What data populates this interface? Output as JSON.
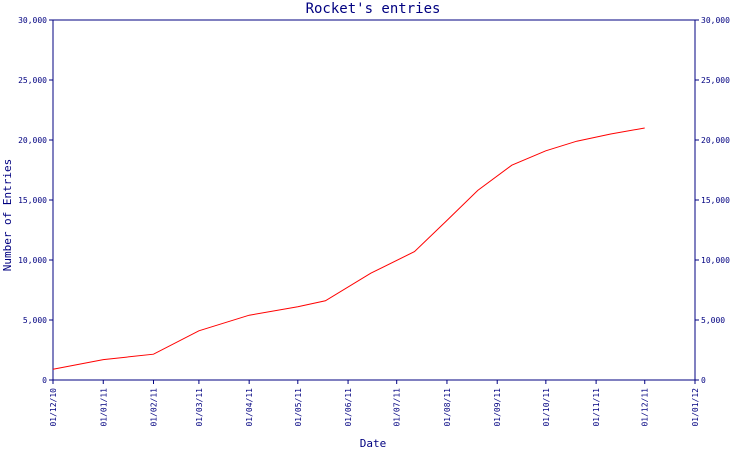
{
  "chart_data": {
    "type": "line",
    "title": "Rocket's entries",
    "xlabel": "Date",
    "ylabel": "Number of Entries",
    "x_tick_labels": [
      "01/12/10",
      "01/01/11",
      "01/02/11",
      "01/03/11",
      "01/04/11",
      "01/05/11",
      "01/06/11",
      "01/07/11",
      "01/08/11",
      "01/09/11",
      "01/10/11",
      "01/11/11",
      "01/12/11",
      "01/01/12"
    ],
    "y_tick_labels": [
      "0",
      "5,000",
      "10,000",
      "15,000",
      "20,000",
      "25,000",
      "30,000"
    ],
    "y_ticks": [
      0,
      5000,
      10000,
      15000,
      20000,
      25000,
      30000
    ],
    "ylim": [
      0,
      30000
    ],
    "xlim": [
      "2010-12-01",
      "2012-01-01"
    ],
    "grid": false,
    "series": [
      {
        "color": "#ff0000",
        "x": [
          "2010-12-01",
          "2011-01-01",
          "2011-02-01",
          "2011-03-01",
          "2011-04-01",
          "2011-05-01",
          "2011-05-18",
          "2011-06-15",
          "2011-07-12",
          "2011-08-01",
          "2011-08-20",
          "2011-09-10",
          "2011-10-01",
          "2011-10-20",
          "2011-11-10",
          "2011-12-01"
        ],
        "values": [
          900,
          1700,
          2150,
          4100,
          5400,
          6100,
          6600,
          8900,
          10700,
          13300,
          15800,
          17900,
          19100,
          19900,
          20500,
          21000
        ]
      }
    ],
    "colors": {
      "axis": "#000080",
      "line": "#ff0000",
      "background": "#ffffff"
    }
  }
}
